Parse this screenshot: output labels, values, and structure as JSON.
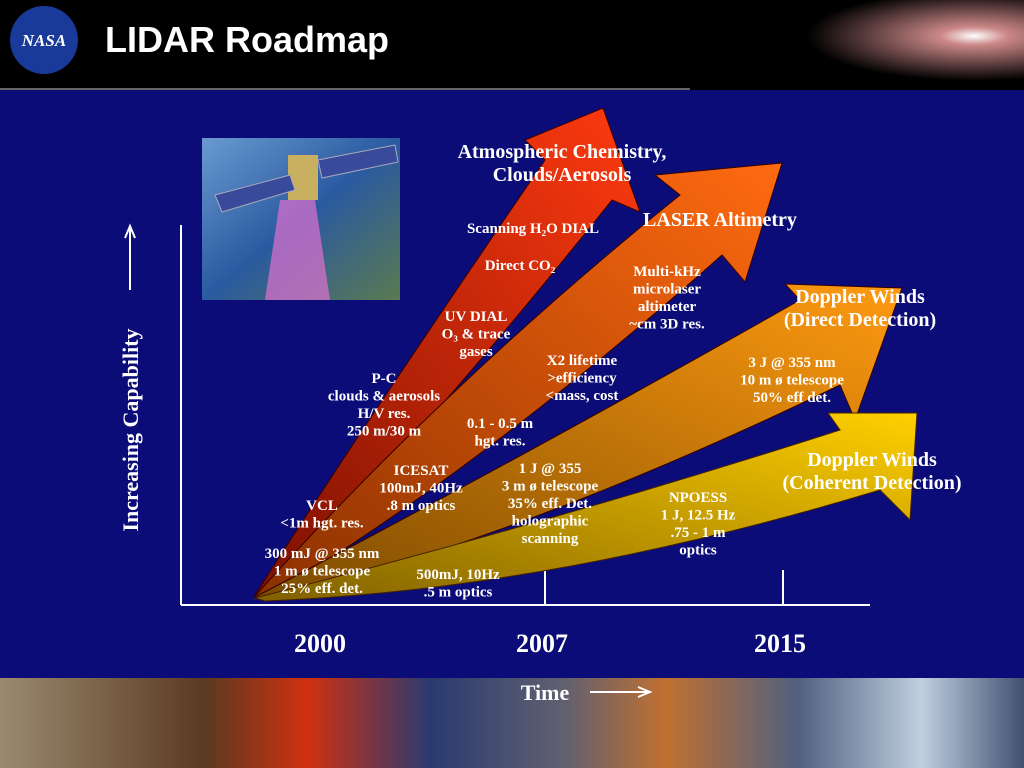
{
  "header": {
    "logo": "NASA",
    "title": "LIDAR Roadmap"
  },
  "axes": {
    "y_label": "Increasing Capability",
    "x_label": "Time",
    "years": [
      "2000",
      "2007",
      "2015"
    ]
  },
  "headings": [
    {
      "lines": [
        "Atmospheric Chemistry,",
        "Clouds/Aerosols"
      ]
    },
    {
      "lines": [
        "LASER Altimetry"
      ]
    },
    {
      "lines": [
        "Doppler Winds",
        "(Direct Detection)"
      ]
    },
    {
      "lines": [
        "Doppler Winds",
        "(Coherent Detection)"
      ]
    }
  ],
  "notes": [
    {
      "lines": [
        "Scanning H₂O DIAL"
      ]
    },
    {
      "lines": [
        "Direct CO₂"
      ]
    },
    {
      "lines": [
        "UV DIAL",
        "O₃ & trace",
        "gases"
      ]
    },
    {
      "lines": [
        "P-C",
        "clouds & aerosols",
        "H/V res.",
        "250 m/30 m"
      ]
    },
    {
      "lines": [
        "Multi-kHz",
        "microlaser",
        "altimeter",
        "~cm 3D res."
      ]
    },
    {
      "lines": [
        "X2 lifetime",
        ">efficiency",
        "<mass, cost"
      ]
    },
    {
      "lines": [
        "3 J @ 355 nm",
        "10 m ø telescope",
        "50% eff det."
      ]
    },
    {
      "lines": [
        "0.1 - 0.5 m",
        "hgt. res."
      ]
    },
    {
      "lines": [
        "ICESAT",
        "100mJ, 40Hz",
        ".8 m  optics"
      ]
    },
    {
      "lines": [
        "1 J @ 355",
        "3 m ø telescope",
        "35% eff. Det.",
        "holographic",
        "scanning"
      ]
    },
    {
      "lines": [
        "NPOESS",
        "1 J, 12.5 Hz",
        ".75 - 1 m",
        "optics"
      ]
    },
    {
      "lines": [
        "VCL",
        "<1m hgt. res."
      ]
    },
    {
      "lines": [
        "300 mJ @ 355 nm",
        "1 m ø telescope",
        "25% eff. det."
      ]
    },
    {
      "lines": [
        "500mJ, 10Hz",
        ".5 m optics"
      ]
    }
  ]
}
